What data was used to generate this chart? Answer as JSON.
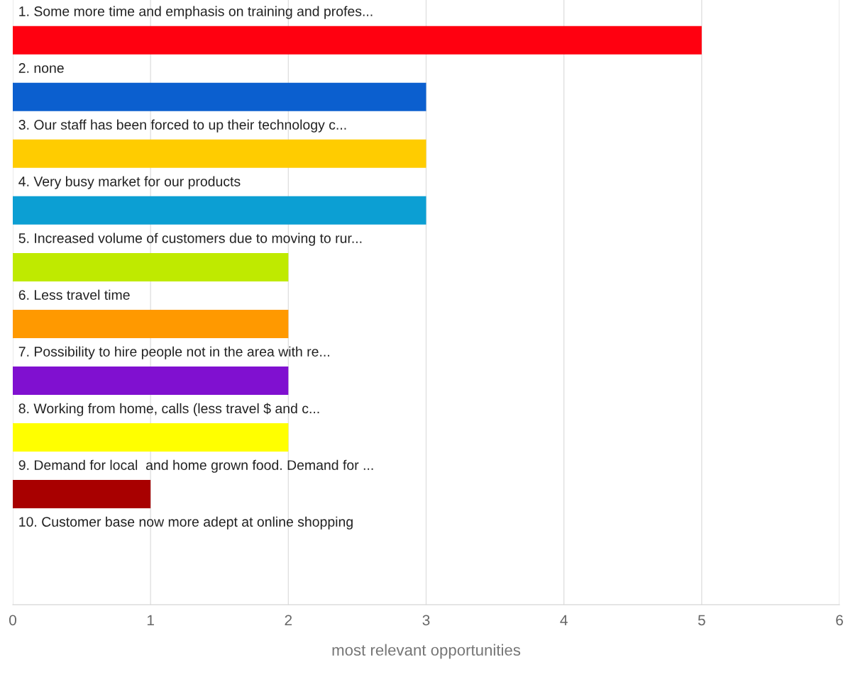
{
  "chart_data": {
    "type": "bar",
    "orientation": "horizontal",
    "xlabel": "most relevant opportunities",
    "categories": [
      "1. Some more time and emphasis on training and profes...",
      "2. none",
      "3. Our staff has been forced to up their technology c...",
      "4. Very busy market for our products",
      "5. Increased volume of customers due to moving to rur...",
      "6. Less travel time",
      "7. Possibility to hire people not in the area with re...",
      "8. Working from home, calls (less travel $ and c...",
      "9. Demand for local  and home grown food. Demand for ...",
      "10. Customer base now more adept at online shopping"
    ],
    "values": [
      5,
      3,
      3,
      3,
      2,
      2,
      2,
      2,
      1,
      0
    ],
    "colors": [
      "#ff0010",
      "#0b5fcf",
      "#ffcc00",
      "#0c9fd3",
      "#bfea00",
      "#ff9900",
      "#8010d0",
      "#ffff00",
      "#a80000",
      "#3366cc"
    ],
    "xlim": [
      0,
      6
    ],
    "xticks": [
      0,
      1,
      2,
      3,
      4,
      5,
      6
    ],
    "grid": "x",
    "tick_labels": "x"
  }
}
